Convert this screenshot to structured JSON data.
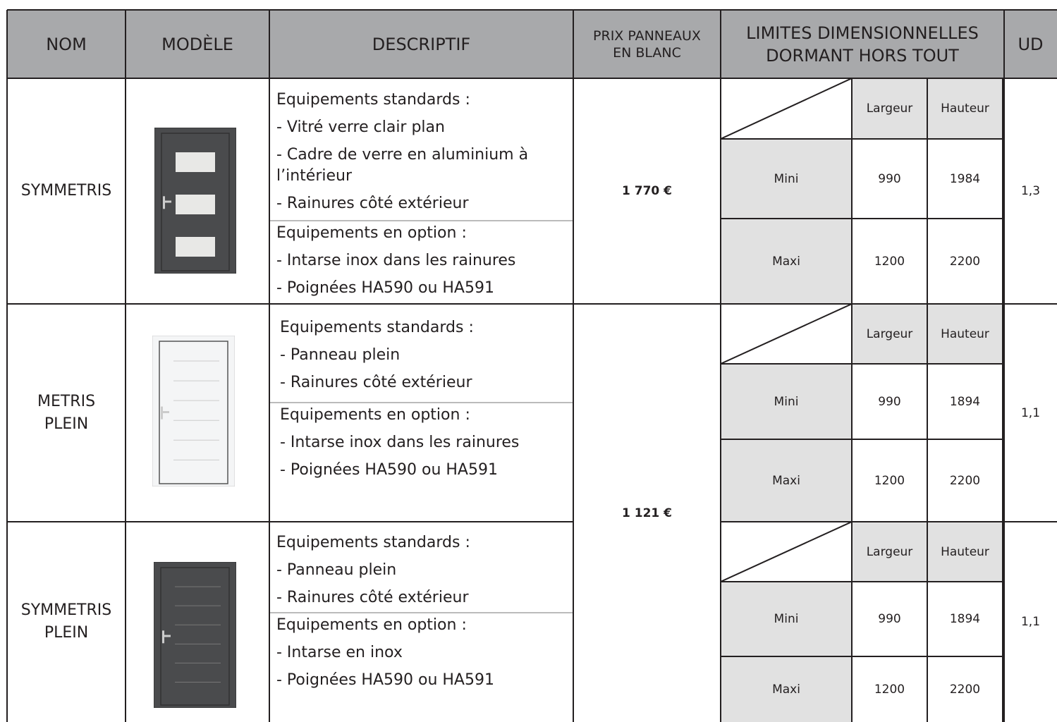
{
  "header": {
    "columns": [
      [
        "NOM"
      ],
      [
        "MODÈLE"
      ],
      [
        "DESCRIPTIF"
      ],
      [
        "PRIX PANNEAUX",
        "EN BLANC"
      ],
      [
        "LIMITES DIMENSIONNELLES",
        "DORMANT HORS TOUT"
      ],
      [
        "UD"
      ]
    ]
  },
  "rows": [
    {
      "name": [
        "SYMMETRIS"
      ],
      "standard": [
        "Equipements standards :",
        "- Vitré verre clair plan",
        "- Cadre de verre en aluminium à l’intérieur",
        "- Rainures côté extérieur"
      ],
      "options": [
        "Equipements en option :",
        "- Intarse inox dans les rainures",
        "- Poignées HA590 ou HA591"
      ],
      "dims": {
        "columns": [
          "Largeur",
          "Hauteur"
        ],
        "rows": [
          {
            "label": "Mini",
            "values": [
              "990",
              "1984"
            ]
          },
          {
            "label": "Maxi",
            "values": [
              "1200",
              "2200"
            ]
          }
        ]
      },
      "ud": "1,3"
    },
    {
      "name": [
        "METRIS",
        "PLEIN"
      ],
      "standard": [
        "Equipements standards :",
        "- Panneau plein",
        "- Rainures côté extérieur"
      ],
      "options": [
        "Equipements en option :",
        "- Intarse inox dans les rainures",
        "- Poignées HA590 ou HA591"
      ],
      "dims": {
        "columns": [
          "Largeur",
          "Hauteur"
        ],
        "rows": [
          {
            "label": "Mini",
            "values": [
              "990",
              "1894"
            ]
          },
          {
            "label": "Maxi",
            "values": [
              "1200",
              "2200"
            ]
          }
        ]
      },
      "ud": "1,1"
    },
    {
      "name": [
        "SYMMETRIS",
        "PLEIN"
      ],
      "standard": [
        "Equipements standards :",
        "- Panneau plein",
        "- Rainures côté extérieur"
      ],
      "options": [
        "Equipements en option :",
        "- Intarse en inox",
        "- Poignées HA590 ou HA591"
      ],
      "dims": {
        "columns": [
          "Largeur",
          "Hauteur"
        ],
        "rows": [
          {
            "label": "Mini",
            "values": [
              "990",
              "1894"
            ]
          },
          {
            "label": "Maxi",
            "values": [
              "1200",
              "2200"
            ]
          }
        ]
      },
      "ud": "1,1"
    }
  ],
  "prices": [
    "1 770 €",
    "1 121 €"
  ]
}
